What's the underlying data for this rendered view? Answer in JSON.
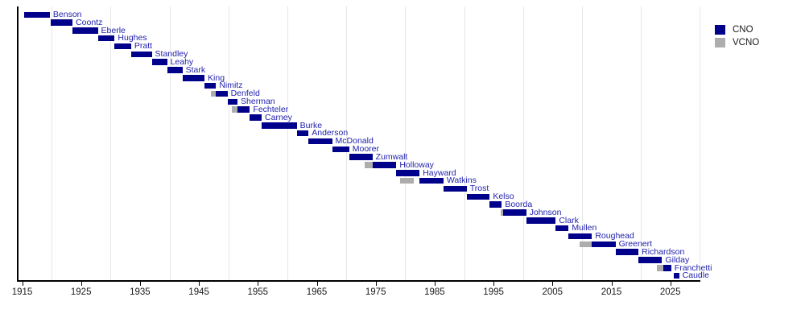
{
  "colors": {
    "cno": "#00008B",
    "vcno": "#ADADAD",
    "label_text": "#2222AE",
    "gridline": "#E6E6E6",
    "axis": "#000000",
    "tick_text": "#1A1A1A"
  },
  "legend": {
    "items": [
      {
        "label": "CNO",
        "color": "#00008B"
      },
      {
        "label": "VCNO",
        "color": "#ADADAD"
      }
    ]
  },
  "chart_data": {
    "type": "gantt",
    "title": "",
    "xlabel": "",
    "ylabel": "",
    "xlim": [
      1915,
      2030.5
    ],
    "x_tick_years": [
      1915,
      1925,
      1935,
      1945,
      1955,
      1965,
      1975,
      1985,
      1995,
      2005,
      2015,
      2025
    ],
    "x_gridline_years": [
      1920,
      1930,
      1940,
      1950,
      1960,
      1970,
      1980,
      1990,
      2000,
      2010,
      2020,
      2030
    ],
    "legend": [
      "CNO",
      "VCNO"
    ],
    "legend_position": "top-right",
    "grid": "vertical-light",
    "series": [
      {
        "name": "Benson",
        "cno": [
          1915.35,
          1919.7
        ]
      },
      {
        "name": "Coontz",
        "cno": [
          1919.85,
          1923.55
        ]
      },
      {
        "name": "Eberle",
        "cno": [
          1923.55,
          1927.85
        ]
      },
      {
        "name": "Hughes",
        "cno": [
          1927.85,
          1930.7
        ]
      },
      {
        "name": "Pratt",
        "cno": [
          1930.7,
          1933.5
        ]
      },
      {
        "name": "Standley",
        "cno": [
          1933.5,
          1937.0
        ]
      },
      {
        "name": "Leahy",
        "cno": [
          1937.0,
          1939.6
        ]
      },
      {
        "name": "Stark",
        "cno": [
          1939.6,
          1942.2
        ]
      },
      {
        "name": "King",
        "cno": [
          1942.2,
          1945.95
        ]
      },
      {
        "name": "Nimitz",
        "cno": [
          1945.95,
          1947.9
        ]
      },
      {
        "name": "Denfeld",
        "vcno": [
          1947.1,
          1947.9
        ],
        "cno": [
          1947.9,
          1949.85
        ]
      },
      {
        "name": "Sherman",
        "cno": [
          1949.85,
          1951.55
        ]
      },
      {
        "name": "Fechteler",
        "vcno": [
          1950.6,
          1951.6
        ],
        "cno": [
          1951.6,
          1953.65
        ]
      },
      {
        "name": "Carney",
        "cno": [
          1953.65,
          1955.65
        ]
      },
      {
        "name": "Burke",
        "cno": [
          1955.65,
          1961.6
        ]
      },
      {
        "name": "Anderson",
        "cno": [
          1961.6,
          1963.6
        ]
      },
      {
        "name": "McDonald",
        "cno": [
          1963.6,
          1967.6
        ]
      },
      {
        "name": "Moorer",
        "cno": [
          1967.6,
          1970.5
        ]
      },
      {
        "name": "Zumwalt",
        "cno": [
          1970.5,
          1974.45
        ]
      },
      {
        "name": "Holloway",
        "vcno": [
          1973.15,
          1974.45
        ],
        "cno": [
          1974.45,
          1978.5
        ]
      },
      {
        "name": "Hayward",
        "cno": [
          1978.5,
          1982.45
        ]
      },
      {
        "name": "Watkins",
        "vcno": [
          1979.2,
          1981.5
        ],
        "cno": [
          1982.45,
          1986.5
        ]
      },
      {
        "name": "Trost",
        "cno": [
          1986.5,
          1990.45
        ]
      },
      {
        "name": "Kelso",
        "cno": [
          1990.5,
          1994.35
        ]
      },
      {
        "name": "Boorda",
        "cno": [
          1994.35,
          1996.4
        ]
      },
      {
        "name": "Johnson",
        "vcno": [
          1996.2,
          1996.6
        ],
        "cno": [
          1996.6,
          2000.55
        ]
      },
      {
        "name": "Clark",
        "cno": [
          2000.55,
          2005.55
        ]
      },
      {
        "name": "Mullen",
        "cno": [
          2005.55,
          2007.75
        ]
      },
      {
        "name": "Roughead",
        "cno": [
          2007.75,
          2011.7
        ]
      },
      {
        "name": "Greenert",
        "vcno": [
          2009.6,
          2011.7
        ],
        "cno": [
          2011.7,
          2015.7
        ]
      },
      {
        "name": "Richardson",
        "cno": [
          2015.7,
          2019.6
        ]
      },
      {
        "name": "Gilday",
        "cno": [
          2019.6,
          2023.6
        ]
      },
      {
        "name": "Franchetti",
        "vcno": [
          2022.7,
          2023.85
        ],
        "cno": [
          2023.85,
          2025.15
        ]
      },
      {
        "name": "Caudle",
        "cno": [
          2025.6,
          2026.5
        ]
      }
    ]
  }
}
